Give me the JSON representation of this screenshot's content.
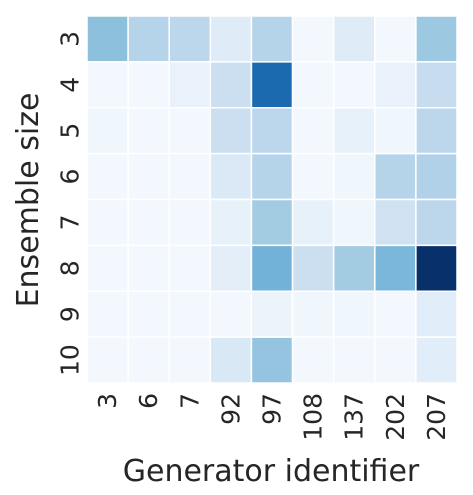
{
  "chart_data": {
    "type": "heatmap",
    "title": "",
    "xlabel": "Generator identifier",
    "ylabel": "Ensemble size",
    "x_categories": [
      "3",
      "6",
      "7",
      "92",
      "97",
      "108",
      "137",
      "202",
      "207"
    ],
    "y_categories": [
      "3",
      "4",
      "5",
      "6",
      "7",
      "8",
      "9",
      "10"
    ],
    "colormap": "Blues",
    "color_min_hex": "#f7fbff",
    "color_max_hex": "#08306b",
    "cell_border_color": "#ffffff",
    "legend": "none",
    "grid": false,
    "values": [
      [
        0.42,
        0.3,
        0.28,
        0.12,
        0.3,
        0.02,
        0.12,
        0.02,
        0.38
      ],
      [
        0.02,
        0.02,
        0.07,
        0.22,
        0.78,
        0.02,
        0.02,
        0.07,
        0.24
      ],
      [
        0.04,
        0.02,
        0.02,
        0.22,
        0.28,
        0.02,
        0.08,
        0.04,
        0.28
      ],
      [
        0.02,
        0.02,
        0.02,
        0.14,
        0.3,
        0.02,
        0.04,
        0.3,
        0.32
      ],
      [
        0.02,
        0.02,
        0.02,
        0.08,
        0.36,
        0.08,
        0.04,
        0.2,
        0.28
      ],
      [
        0.02,
        0.02,
        0.02,
        0.1,
        0.48,
        0.22,
        0.36,
        0.46,
        1.0
      ],
      [
        0.02,
        0.02,
        0.02,
        0.02,
        0.06,
        0.04,
        0.04,
        0.02,
        0.11
      ],
      [
        0.02,
        0.02,
        0.02,
        0.15,
        0.4,
        0.02,
        0.02,
        0.02,
        0.11
      ]
    ]
  }
}
